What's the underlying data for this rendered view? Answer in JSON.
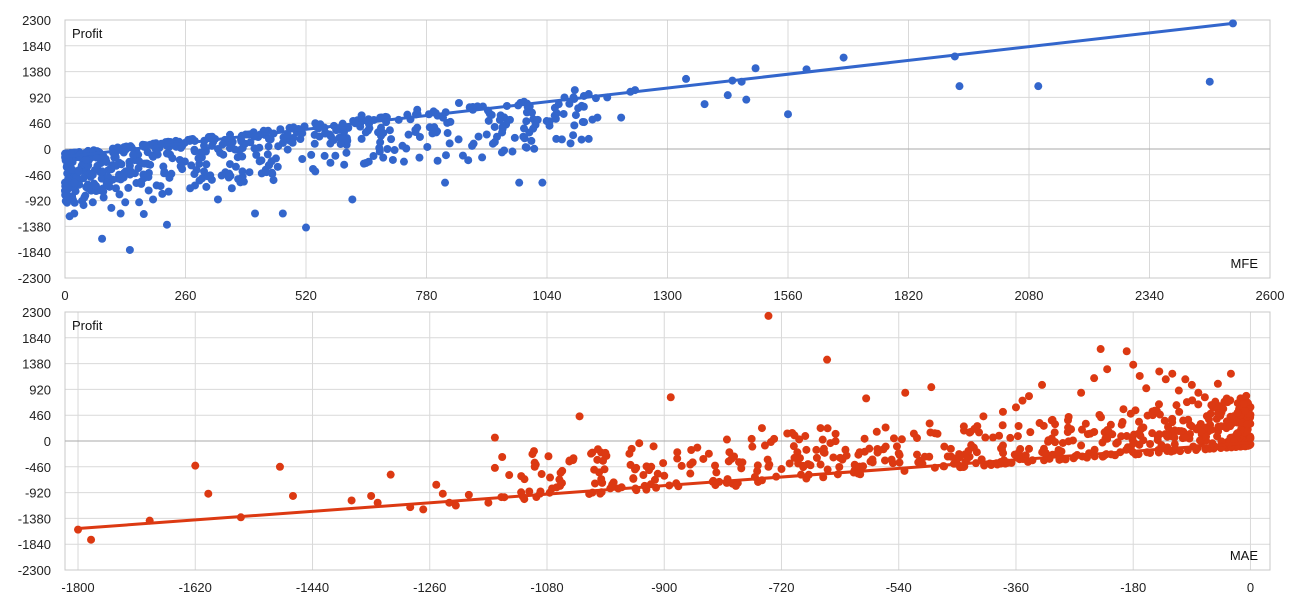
{
  "chart_data": [
    {
      "type": "scatter",
      "x_label": "MFE",
      "y_label": "Profit",
      "xlim": [
        0,
        2600
      ],
      "ylim": [
        -2300,
        2300
      ],
      "xticks": [
        0,
        260,
        520,
        780,
        1040,
        1300,
        1560,
        1820,
        2080,
        2340,
        2600
      ],
      "yticks": [
        2300,
        1840,
        1380,
        920,
        460,
        0,
        -460,
        -920,
        -1380,
        -1840,
        -2300
      ],
      "color": "#3366cc",
      "trendline": [
        [
          0,
          -140
        ],
        [
          2520,
          2240
        ]
      ],
      "points": [
        [
          2520,
          2240
        ],
        [
          2470,
          1200
        ],
        [
          2100,
          1120
        ],
        [
          1930,
          1120
        ],
        [
          1920,
          1650
        ],
        [
          1680,
          1630
        ],
        [
          1600,
          1420
        ],
        [
          1560,
          620
        ],
        [
          1490,
          1440
        ],
        [
          1470,
          880
        ],
        [
          1460,
          1200
        ],
        [
          1440,
          1220
        ],
        [
          1430,
          960
        ],
        [
          1380,
          800
        ],
        [
          1340,
          1250
        ],
        [
          1230,
          1050
        ],
        [
          1220,
          1020
        ],
        [
          1200,
          560
        ],
        [
          1170,
          920
        ],
        [
          1130,
          980
        ],
        [
          1130,
          180
        ],
        [
          1120,
          480
        ],
        [
          1020,
          520
        ],
        [
          1060,
          180
        ],
        [
          1100,
          1050
        ],
        [
          1030,
          -600
        ],
        [
          980,
          -600
        ],
        [
          900,
          -150
        ],
        [
          890,
          760
        ],
        [
          870,
          -200
        ],
        [
          830,
          100
        ],
        [
          820,
          -600
        ],
        [
          760,
          380
        ],
        [
          680,
          120
        ],
        [
          640,
          180
        ],
        [
          620,
          -900
        ],
        [
          580,
          160
        ],
        [
          540,
          -400
        ],
        [
          520,
          -1400
        ],
        [
          460,
          50
        ],
        [
          470,
          -1150
        ],
        [
          420,
          -220
        ],
        [
          410,
          -1150
        ],
        [
          360,
          -700
        ],
        [
          330,
          0
        ],
        [
          330,
          -900
        ],
        [
          300,
          -400
        ],
        [
          270,
          -700
        ],
        [
          250,
          -300
        ],
        [
          220,
          -1350
        ],
        [
          210,
          -800
        ],
        [
          200,
          -100
        ],
        [
          190,
          -900
        ],
        [
          180,
          -500
        ],
        [
          170,
          -1160
        ],
        [
          160,
          -950
        ],
        [
          140,
          -1800
        ],
        [
          130,
          -950
        ],
        [
          120,
          -1150
        ],
        [
          110,
          -700
        ],
        [
          100,
          -1050
        ],
        [
          90,
          -600
        ],
        [
          80,
          -1600
        ],
        [
          70,
          -300
        ],
        [
          60,
          -950
        ],
        [
          50,
          -700
        ],
        [
          40,
          -1000
        ],
        [
          30,
          -400
        ],
        [
          20,
          -1150
        ],
        [
          10,
          -1200
        ],
        [
          5,
          -900
        ],
        [
          15,
          -600
        ],
        [
          960,
          520
        ],
        [
          940,
          600
        ],
        [
          880,
          700
        ],
        [
          850,
          820
        ],
        [
          800,
          640
        ],
        [
          760,
          700
        ],
        [
          720,
          520
        ],
        [
          680,
          560
        ],
        [
          640,
          600
        ],
        [
          600,
          400
        ],
        [
          560,
          380
        ],
        [
          540,
          460
        ],
        [
          500,
          300
        ],
        [
          480,
          260
        ],
        [
          440,
          180
        ],
        [
          400,
          120
        ],
        [
          360,
          100
        ],
        [
          340,
          80
        ],
        [
          300,
          60
        ],
        [
          280,
          -40
        ],
        [
          250,
          20
        ],
        [
          220,
          -80
        ],
        [
          190,
          -140
        ],
        [
          160,
          -220
        ],
        [
          140,
          -300
        ],
        [
          100,
          -360
        ],
        [
          80,
          -400
        ],
        [
          60,
          -460
        ],
        [
          40,
          -520
        ],
        [
          20,
          -600
        ]
      ]
    },
    {
      "type": "scatter",
      "x_label": "MAE",
      "y_label": "Profit",
      "xlim": [
        -1820,
        30
      ],
      "ylim": [
        -2300,
        2300
      ],
      "xticks": [
        -1800,
        -1620,
        -1440,
        -1260,
        -1080,
        -900,
        -720,
        -540,
        -360,
        -180,
        0
      ],
      "yticks": [
        2300,
        1840,
        1380,
        920,
        460,
        0,
        -460,
        -920,
        -1380,
        -1840,
        -2300
      ],
      "color": "#dc3912",
      "trendline": [
        [
          -1800,
          -1560
        ],
        [
          0,
          -30
        ]
      ],
      "points": [
        [
          -1800,
          -1580
        ],
        [
          -1780,
          -1760
        ],
        [
          -1690,
          -1420
        ],
        [
          -1620,
          -440
        ],
        [
          -1600,
          -940
        ],
        [
          -1550,
          -1360
        ],
        [
          -1490,
          -460
        ],
        [
          -1470,
          -980
        ],
        [
          -1380,
          -1060
        ],
        [
          -1350,
          -980
        ],
        [
          -1340,
          -1100
        ],
        [
          -1320,
          -600
        ],
        [
          -1290,
          -1180
        ],
        [
          -1270,
          -1220
        ],
        [
          -1250,
          -780
        ],
        [
          -1240,
          -940
        ],
        [
          -1230,
          -1100
        ],
        [
          -1220,
          -1150
        ],
        [
          -1200,
          -960
        ],
        [
          -1170,
          -1100
        ],
        [
          -1160,
          60
        ],
        [
          -1160,
          -480
        ],
        [
          -1150,
          -1000
        ],
        [
          -1100,
          -180
        ],
        [
          -1090,
          -900
        ],
        [
          -1060,
          -800
        ],
        [
          -1040,
          -340
        ],
        [
          -1030,
          440
        ],
        [
          -1000,
          -560
        ],
        [
          -980,
          -780
        ],
        [
          -950,
          -140
        ],
        [
          -930,
          -800
        ],
        [
          -920,
          -460
        ],
        [
          -890,
          780
        ],
        [
          -880,
          -200
        ],
        [
          -860,
          -580
        ],
        [
          -840,
          -320
        ],
        [
          -800,
          -200
        ],
        [
          -790,
          -800
        ],
        [
          -750,
          230
        ],
        [
          -750,
          -700
        ],
        [
          -740,
          2230
        ],
        [
          -720,
          -500
        ],
        [
          -700,
          100
        ],
        [
          -690,
          -600
        ],
        [
          -660,
          230
        ],
        [
          -650,
          1450
        ],
        [
          -630,
          -300
        ],
        [
          -600,
          -200
        ],
        [
          -590,
          760
        ],
        [
          -560,
          -100
        ],
        [
          -530,
          860
        ],
        [
          -510,
          -380
        ],
        [
          -490,
          960
        ],
        [
          -470,
          -100
        ],
        [
          -440,
          260
        ],
        [
          -430,
          160
        ],
        [
          -410,
          440
        ],
        [
          -380,
          520
        ],
        [
          -360,
          600
        ],
        [
          -350,
          720
        ],
        [
          -340,
          800
        ],
        [
          -320,
          1000
        ],
        [
          -300,
          300
        ],
        [
          -280,
          240
        ],
        [
          -260,
          860
        ],
        [
          -240,
          1120
        ],
        [
          -230,
          1640
        ],
        [
          -220,
          1280
        ],
        [
          -200,
          -200
        ],
        [
          -190,
          1600
        ],
        [
          -180,
          1360
        ],
        [
          -170,
          1160
        ],
        [
          -160,
          940
        ],
        [
          -140,
          1240
        ],
        [
          -130,
          1100
        ],
        [
          -120,
          1200
        ],
        [
          -110,
          900
        ],
        [
          -100,
          1100
        ],
        [
          -90,
          1000
        ],
        [
          -80,
          860
        ],
        [
          -70,
          780
        ],
        [
          -60,
          640
        ],
        [
          -50,
          1020
        ],
        [
          -40,
          700
        ],
        [
          -30,
          1200
        ],
        [
          -20,
          500
        ],
        [
          -10,
          660
        ],
        [
          -5,
          300
        ],
        [
          0,
          50
        ],
        [
          -900,
          -620
        ],
        [
          -860,
          -420
        ],
        [
          -820,
          -560
        ],
        [
          -780,
          -380
        ],
        [
          -740,
          -460
        ],
        [
          -700,
          -300
        ],
        [
          -660,
          -420
        ],
        [
          -620,
          -260
        ],
        [
          -580,
          -380
        ],
        [
          -540,
          -220
        ],
        [
          -500,
          -280
        ],
        [
          -460,
          -140
        ],
        [
          -420,
          -200
        ],
        [
          -380,
          -80
        ],
        [
          -340,
          -140
        ],
        [
          -300,
          -20
        ],
        [
          -260,
          -80
        ],
        [
          -220,
          40
        ],
        [
          -180,
          -40
        ],
        [
          -140,
          120
        ],
        [
          -100,
          60
        ],
        [
          -60,
          200
        ],
        [
          -20,
          140
        ]
      ]
    }
  ]
}
